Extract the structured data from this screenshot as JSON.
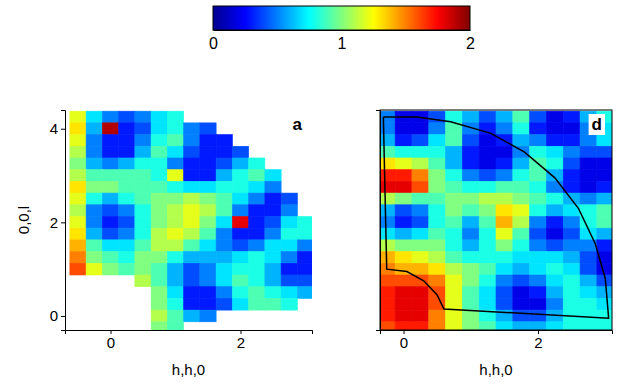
{
  "chart_data": {
    "type": "heatmap",
    "colorbar": {
      "range": [
        0,
        2
      ],
      "ticks": [
        0,
        1,
        2
      ]
    },
    "panels": [
      {
        "label": "a",
        "x": [
          -0.5,
          -0.25,
          0,
          0.25,
          0.5,
          0.75,
          1,
          1.25,
          1.5,
          1.75,
          2,
          2.25,
          2.5,
          2.75,
          3
        ],
        "y": [
          4.25,
          4,
          3.75,
          3.5,
          3.25,
          3,
          2.75,
          2.5,
          2.25,
          2,
          1.75,
          1.5,
          1.25,
          1,
          0.75,
          0.5,
          0.25,
          0,
          -0.25
        ],
        "z": [
          [
            1.2,
            0.7,
            0.5,
            0.4,
            0.5,
            0.7,
            0.8,
            null,
            null,
            null,
            null,
            null,
            null,
            null,
            null
          ],
          [
            1.3,
            0.6,
            1.9,
            0.3,
            0.4,
            0.7,
            0.8,
            0.5,
            0.4,
            null,
            null,
            null,
            null,
            null,
            null
          ],
          [
            1.2,
            0.5,
            0.3,
            0.3,
            0.5,
            0.8,
            0.9,
            0.5,
            0.3,
            0.3,
            null,
            null,
            null,
            null,
            null
          ],
          [
            1.1,
            0.5,
            0.3,
            0.3,
            0.6,
            0.9,
            0.7,
            0.4,
            0.3,
            0.3,
            0.4,
            null,
            null,
            null,
            null
          ],
          [
            1.0,
            0.6,
            0.5,
            0.6,
            0.8,
            0.8,
            0.5,
            0.3,
            0.3,
            0.4,
            0.6,
            0.8,
            null,
            null,
            null
          ],
          [
            1.1,
            0.9,
            0.9,
            0.9,
            0.9,
            0.8,
            1.2,
            0.3,
            0.3,
            0.6,
            0.8,
            0.9,
            0.7,
            null,
            null
          ],
          [
            1.3,
            1.0,
            1.0,
            0.9,
            0.9,
            0.9,
            0.8,
            0.7,
            0.7,
            0.8,
            0.8,
            0.7,
            0.5,
            null,
            null
          ],
          [
            1.2,
            0.8,
            0.6,
            0.8,
            0.9,
            1.0,
            1.0,
            1.1,
            1.0,
            0.9,
            0.7,
            0.5,
            0.3,
            0.4,
            null
          ],
          [
            1.1,
            0.5,
            0.4,
            0.5,
            0.8,
            1.0,
            1.1,
            1.2,
            1.1,
            0.9,
            0.5,
            0.3,
            0.3,
            0.5,
            null
          ],
          [
            1.2,
            0.5,
            0.3,
            0.4,
            0.8,
            1.0,
            1.1,
            1.2,
            1.0,
            0.7,
            1.8,
            0.3,
            0.4,
            0.7,
            0.8
          ],
          [
            1.3,
            0.6,
            0.4,
            0.5,
            0.8,
            1.1,
            1.2,
            1.1,
            0.9,
            0.5,
            0.3,
            0.3,
            0.5,
            0.8,
            0.8
          ],
          [
            1.4,
            0.9,
            0.7,
            0.7,
            0.9,
            1.1,
            1.1,
            0.9,
            0.7,
            0.5,
            0.4,
            0.5,
            0.7,
            0.7,
            0.5
          ],
          [
            1.5,
            1.0,
            0.9,
            0.8,
            1.0,
            1.0,
            0.8,
            0.6,
            0.6,
            0.6,
            0.7,
            0.8,
            0.7,
            0.5,
            0.3
          ],
          [
            1.6,
            1.2,
            1.0,
            0.9,
            1.0,
            0.9,
            0.6,
            0.4,
            0.5,
            0.7,
            0.8,
            0.8,
            0.6,
            0.3,
            0.3
          ],
          [
            null,
            null,
            null,
            null,
            1.1,
            0.9,
            0.6,
            0.4,
            0.5,
            0.7,
            0.9,
            0.8,
            0.6,
            0.4,
            0.4
          ],
          [
            null,
            null,
            null,
            null,
            null,
            1.0,
            0.7,
            0.3,
            0.3,
            0.5,
            0.8,
            0.9,
            0.8,
            0.7,
            0.6
          ],
          [
            null,
            null,
            null,
            null,
            null,
            1.0,
            0.8,
            0.3,
            0.3,
            0.4,
            0.7,
            0.9,
            0.9,
            0.8,
            null
          ],
          [
            null,
            null,
            null,
            null,
            null,
            1.1,
            0.9,
            0.6,
            0.5,
            null,
            null,
            null,
            null,
            null,
            null
          ],
          [
            null,
            null,
            null,
            null,
            null,
            1.0,
            0.9,
            null,
            null,
            null,
            null,
            null,
            null,
            null,
            null
          ]
        ],
        "xlim": [
          -0.7,
          3.1
        ],
        "ylim": [
          -0.3,
          4.4
        ],
        "xticks": [
          0,
          2
        ],
        "yticks": [
          0,
          2,
          4
        ],
        "xlabel": "h,h,0",
        "ylabel": "0,0,l"
      },
      {
        "label": "d",
        "x": [
          -0.5,
          -0.25,
          0,
          0.25,
          0.5,
          0.75,
          1,
          1.25,
          1.5,
          1.75,
          2,
          2.25,
          2.5,
          2.75,
          3
        ],
        "y": [
          4.25,
          4,
          3.75,
          3.5,
          3.25,
          3,
          2.75,
          2.5,
          2.25,
          2,
          1.75,
          1.5,
          1.25,
          1,
          0.75,
          0.5,
          0.25,
          0,
          -0.25
        ],
        "z": [
          [
            0.9,
            0.5,
            0.2,
            0.2,
            0.4,
            0.8,
            0.6,
            0.4,
            0.6,
            0.9,
            0.4,
            0.2,
            0.3,
            0.6,
            0.8
          ],
          [
            0.9,
            0.5,
            0.2,
            0.2,
            0.5,
            0.9,
            0.5,
            0.3,
            0.5,
            0.8,
            0.3,
            0.2,
            0.2,
            0.5,
            0.7
          ],
          [
            0.9,
            0.6,
            0.3,
            0.4,
            0.7,
            0.9,
            0.4,
            0.2,
            0.3,
            0.6,
            0.5,
            0.3,
            0.3,
            0.5,
            0.7
          ],
          [
            1.0,
            0.9,
            0.8,
            0.8,
            0.8,
            0.6,
            0.3,
            0.2,
            0.2,
            0.5,
            0.8,
            0.7,
            0.5,
            0.4,
            0.4
          ],
          [
            1.2,
            1.3,
            1.2,
            1.1,
            0.9,
            0.6,
            0.3,
            0.2,
            0.3,
            0.6,
            0.9,
            0.8,
            0.4,
            0.2,
            0.2
          ],
          [
            1.5,
            1.7,
            1.7,
            1.5,
            1.0,
            0.8,
            0.5,
            0.4,
            0.5,
            0.8,
            0.9,
            0.6,
            0.3,
            0.2,
            0.2
          ],
          [
            1.5,
            1.8,
            1.8,
            1.6,
            1.0,
            0.9,
            0.8,
            0.8,
            0.9,
            0.9,
            0.8,
            0.5,
            0.3,
            0.2,
            0.3
          ],
          [
            1.0,
            1.1,
            1.0,
            0.9,
            0.9,
            1.0,
            1.0,
            1.1,
            1.1,
            1.0,
            0.9,
            0.8,
            0.6,
            0.5,
            0.6
          ],
          [
            0.9,
            0.6,
            0.4,
            0.5,
            0.8,
            1.0,
            0.9,
            1.0,
            1.3,
            1.2,
            0.8,
            0.6,
            0.7,
            0.8,
            0.9
          ],
          [
            0.9,
            0.5,
            0.3,
            0.4,
            0.8,
            0.9,
            0.6,
            0.9,
            1.4,
            1.1,
            0.5,
            0.3,
            0.5,
            0.8,
            0.9
          ],
          [
            1.0,
            0.7,
            0.6,
            0.7,
            0.9,
            0.8,
            0.5,
            0.8,
            1.2,
            0.9,
            0.4,
            0.2,
            0.4,
            0.7,
            0.6
          ],
          [
            1.2,
            1.1,
            1.0,
            1.0,
            1.0,
            0.8,
            0.6,
            0.8,
            1.0,
            0.8,
            0.5,
            0.4,
            0.5,
            0.5,
            0.3
          ],
          [
            1.4,
            1.4,
            1.3,
            1.2,
            1.1,
            0.9,
            0.8,
            0.8,
            0.8,
            0.7,
            0.7,
            0.7,
            0.6,
            0.4,
            0.2
          ],
          [
            1.6,
            1.5,
            1.4,
            1.4,
            1.3,
            1.1,
            1.0,
            0.9,
            0.7,
            0.6,
            0.7,
            0.8,
            0.7,
            0.4,
            0.2
          ],
          [
            1.7,
            1.6,
            1.6,
            1.6,
            1.5,
            1.2,
            1.0,
            0.8,
            0.5,
            0.4,
            0.5,
            0.7,
            0.8,
            0.6,
            0.4
          ],
          [
            1.7,
            1.7,
            1.8,
            1.8,
            1.6,
            1.2,
            0.9,
            0.7,
            0.4,
            0.2,
            0.3,
            0.6,
            0.8,
            0.7,
            0.6
          ],
          [
            1.6,
            1.7,
            1.8,
            1.8,
            1.6,
            1.2,
            0.9,
            0.7,
            0.4,
            0.2,
            0.2,
            0.5,
            0.8,
            0.8,
            0.7
          ],
          [
            1.6,
            1.7,
            1.8,
            1.8,
            1.5,
            1.2,
            1.0,
            0.8,
            0.6,
            0.4,
            0.4,
            0.6,
            0.8,
            0.8,
            0.8
          ],
          [
            1.5,
            1.6,
            1.7,
            1.7,
            1.5,
            1.2,
            1.0,
            0.9,
            0.7,
            0.6,
            0.6,
            0.7,
            0.8,
            0.8,
            0.8
          ]
        ],
        "xlim": [
          -0.35,
          3.1
        ],
        "ylim": [
          -0.3,
          4.4
        ],
        "xticks": [
          0,
          2
        ],
        "xlabel": "h,h,0",
        "tick_labels": "x",
        "outline": {
          "x": [
            -0.3,
            -0.25,
            0.05,
            0.3,
            0.5,
            0.6,
            3.05,
            3.0,
            2.85,
            2.6,
            2.25,
            1.8,
            1.3,
            0.7,
            0.2,
            -0.3
          ],
          "y": [
            4.25,
            1.0,
            0.95,
            0.75,
            0.45,
            0.15,
            -0.05,
            0.8,
            1.55,
            2.3,
            2.95,
            3.5,
            3.9,
            4.15,
            4.25,
            4.25
          ]
        }
      }
    ]
  }
}
